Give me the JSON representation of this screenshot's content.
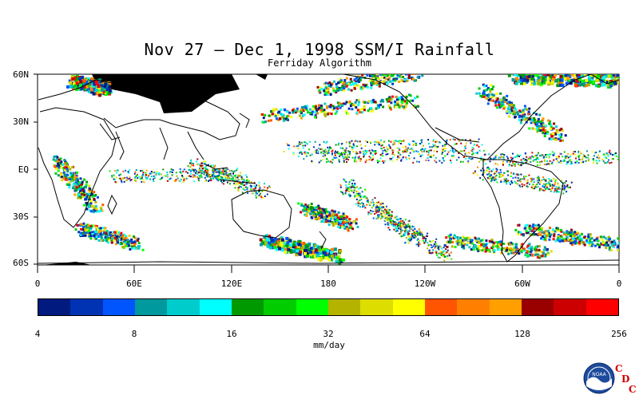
{
  "title": "Nov 27 – Dec 1, 1998 SSM/I Rainfall",
  "subtitle": "Ferriday Algorithm",
  "lat_labels": [
    "60N",
    "30N",
    "EQ",
    "30S",
    "60S"
  ],
  "lon_labels": [
    "0",
    "60E",
    "120E",
    "180",
    "120W",
    "60W",
    "0"
  ],
  "colorbar": {
    "colors": [
      "#001a80",
      "#0033b3",
      "#0055ff",
      "#00999e",
      "#00cccc",
      "#00ffff",
      "#009900",
      "#00cc00",
      "#00ff00",
      "#b3b300",
      "#dddd00",
      "#ffff00",
      "#ff5500",
      "#ff8000",
      "#ffa000",
      "#990000",
      "#cc0000",
      "#ff0000"
    ],
    "tick_labels": [
      "4",
      "8",
      "16",
      "32",
      "64",
      "128",
      "256"
    ],
    "unit_label": "mm/day"
  },
  "logo": {
    "text": "NOAA"
  },
  "cdc_letters": [
    "C",
    "D",
    "C"
  ]
}
